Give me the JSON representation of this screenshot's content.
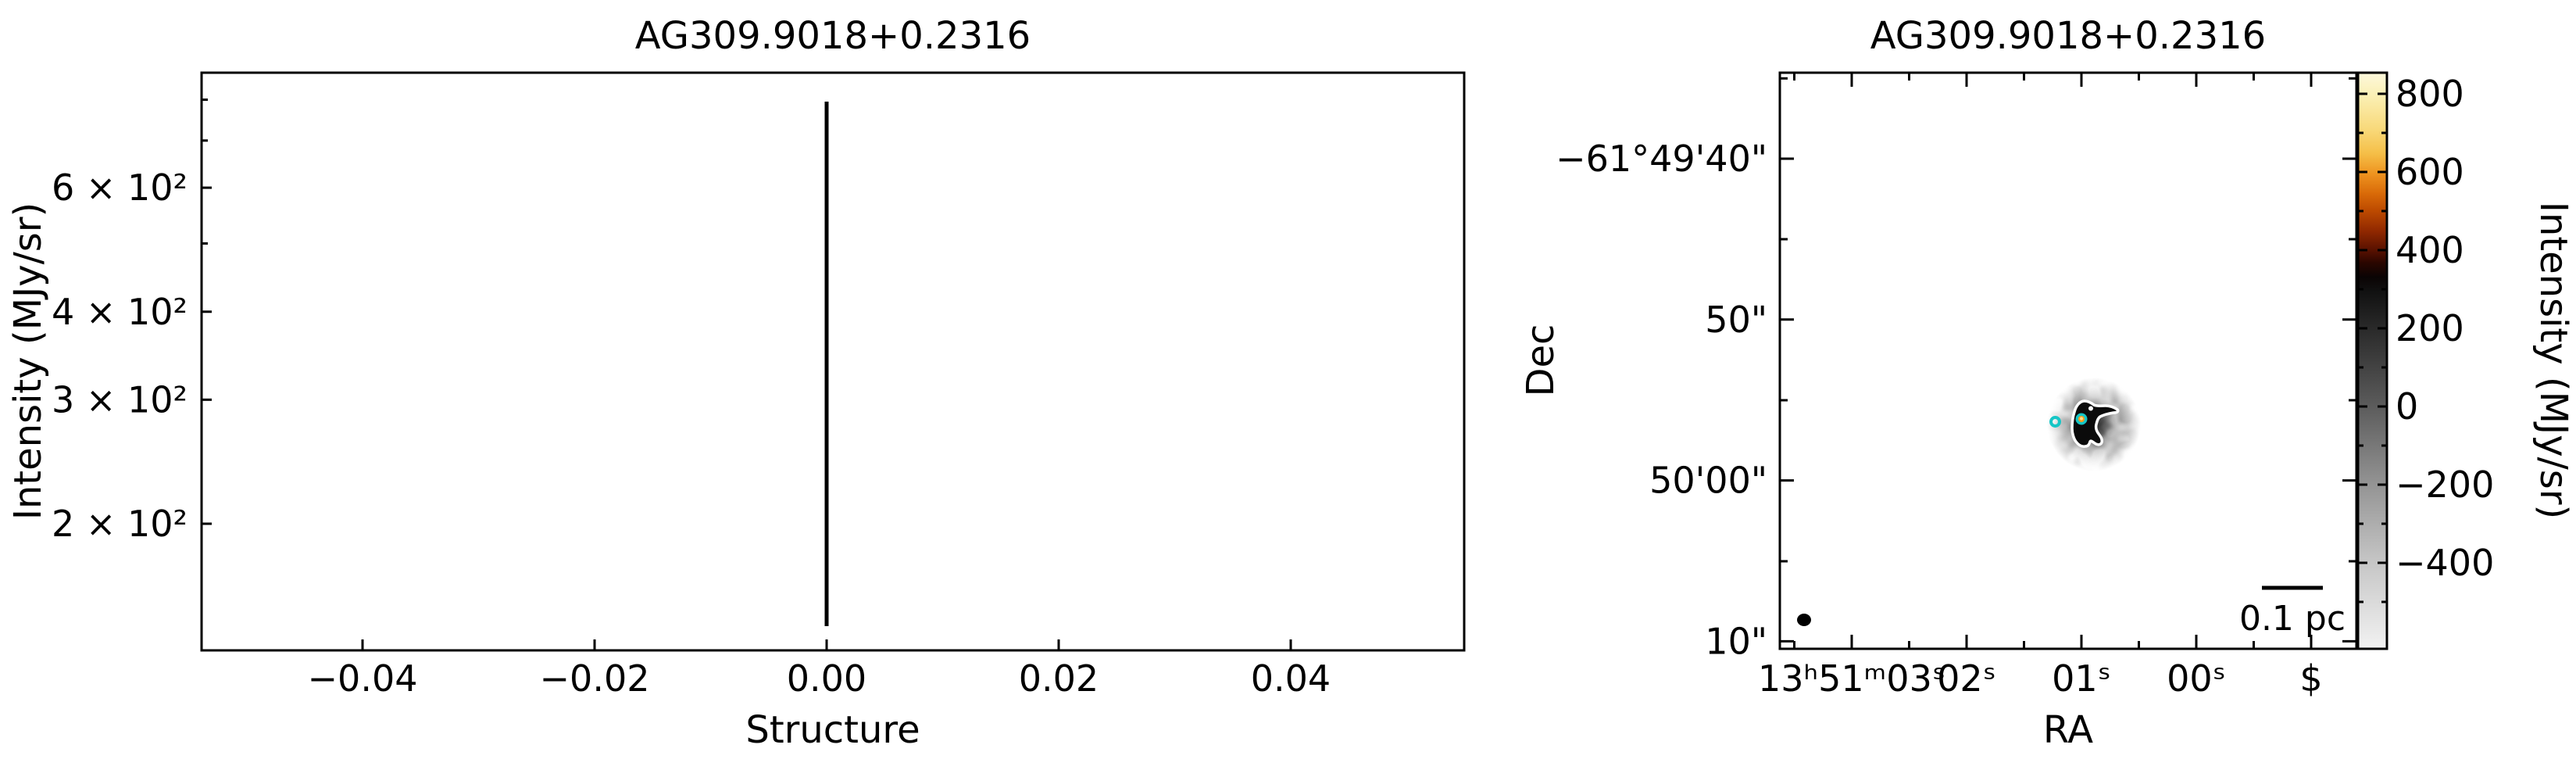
{
  "figure": {
    "left_title": "AG309.9018+0.2316",
    "right_title": "AG309.9018+0.2316"
  },
  "chart_data": [
    {
      "id": "structure-intensity-profile",
      "type": "line",
      "title": "AG309.9018+0.2316",
      "xlabel": "Structure",
      "ylabel": "Intensity (MJy/sr)",
      "y_scale": "log",
      "xlim": [
        -0.0545,
        0.0552
      ],
      "ylim": [
        132,
        873
      ],
      "grid": false,
      "x_ticks": {
        "values": [
          -0.04,
          -0.02,
          0.0,
          0.02,
          0.04
        ],
        "labels": [
          "−0.04",
          "−0.02",
          "0.00",
          "0.02",
          "0.04"
        ]
      },
      "y_ticks": {
        "values": [
          200,
          300,
          400,
          600
        ],
        "labels": [
          "2 × 10²",
          "3 × 10²",
          "4 × 10²",
          "6 × 10²"
        ],
        "minor_values": [
          500,
          700,
          800
        ]
      },
      "series": [
        {
          "name": "structure-0-spike",
          "type": "vline",
          "x": 0.0,
          "y_min": 143,
          "y_max": 795,
          "color": "#000000",
          "linewidth": 5
        }
      ]
    },
    {
      "id": "continuum-sky-map",
      "type": "heatmap",
      "title": "AG309.9018+0.2316",
      "xlabel": "RA",
      "ylabel": "Dec",
      "x_ticks": {
        "labels": [
          "13ʰ51ᵐ03ˢ",
          "02ˢ",
          "01ˢ",
          "00ˢ",
          "$"
        ]
      },
      "y_ticks": {
        "labels": [
          "−61°49'40\"",
          "50\"",
          "50'00\"",
          "10\""
        ]
      },
      "field": {
        "shape": "circular-aperture-grayscale-noise",
        "noise_range": [
          "#181818",
          "#f0f0f0"
        ]
      },
      "colorbar": {
        "label": "Intensity (MJy/sr)",
        "tick_values": [
          800,
          600,
          400,
          200,
          0,
          -200,
          -400
        ],
        "tick_labels": [
          "800",
          "600",
          "400",
          "200",
          "0",
          "−200",
          "−400"
        ],
        "vmin": -620,
        "vmax": 854,
        "colormap": "grayscale below ~350 MJy/sr, hot (black-red-orange-yellow-cream) above"
      },
      "annotations": {
        "scalebar_label": "0.1 pc",
        "beam_color": "#000000",
        "contour_color": "#ffffff",
        "markers": [
          {
            "name": "core-peak",
            "ring_color": "#16c6c6",
            "core_color": "#ff9e1e",
            "core_center_color": "#ffdf8a"
          },
          {
            "name": "neighbor-source",
            "ring_color": "#16c6c6",
            "fill": "none"
          }
        ]
      }
    }
  ]
}
